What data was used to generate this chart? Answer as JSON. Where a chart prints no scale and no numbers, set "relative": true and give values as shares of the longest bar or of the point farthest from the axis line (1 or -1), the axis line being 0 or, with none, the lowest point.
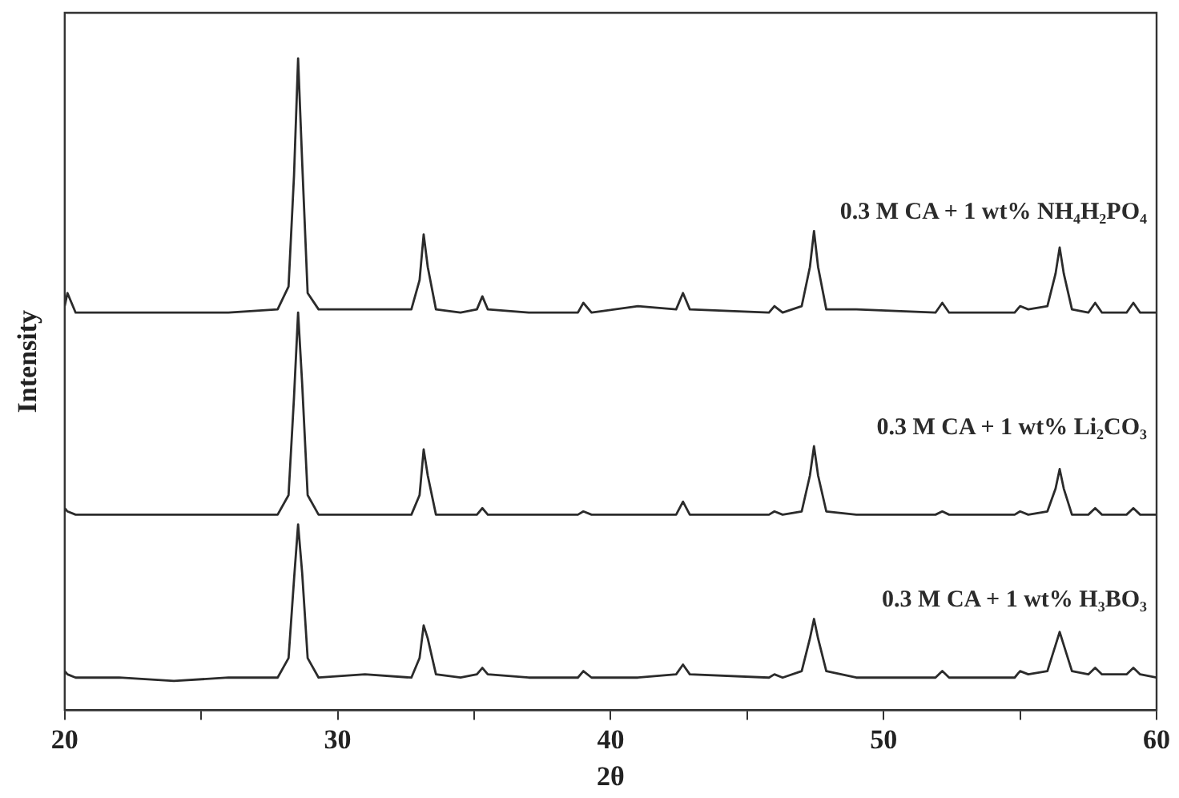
{
  "chart_data": {
    "type": "line",
    "relative": true,
    "xlabel": "2θ",
    "ylabel": "Intensity",
    "xlim": [
      20,
      60
    ],
    "xticks": [
      20,
      {
        "value": 25,
        "label": null
      },
      30,
      {
        "value": 35,
        "label": null
      },
      40,
      {
        "value": 45,
        "label": null
      },
      50,
      {
        "value": 55,
        "label": null
      },
      60
    ],
    "grid": false,
    "legend": false,
    "marker": "none",
    "line_style": "solid",
    "x": [
      20,
      20.1,
      20.4,
      22,
      24,
      26,
      27.8,
      28.2,
      28.4,
      28.55,
      28.7,
      28.9,
      29.3,
      31,
      32.7,
      33.0,
      33.15,
      33.3,
      33.6,
      34.5,
      35.1,
      35.3,
      35.5,
      37,
      38.8,
      39,
      39.3,
      41,
      42.4,
      42.65,
      42.9,
      45.8,
      46,
      46.3,
      47.0,
      47.3,
      47.45,
      47.6,
      47.9,
      49,
      51.9,
      52.15,
      52.4,
      54.8,
      55,
      55.3,
      56.0,
      56.3,
      56.45,
      56.6,
      56.9,
      57.5,
      57.75,
      58,
      58.9,
      59.15,
      59.4,
      60
    ],
    "series": [
      {
        "name": "0.3 M CA + 1 wt% NH₄H₂PO₄",
        "color": "#2b2b2b",
        "values": [
          0.62,
          0.64,
          0.61,
          0.61,
          0.61,
          0.61,
          0.615,
          0.65,
          0.82,
          1.0,
          0.84,
          0.64,
          0.615,
          0.615,
          0.615,
          0.66,
          0.73,
          0.68,
          0.615,
          0.61,
          0.615,
          0.635,
          0.615,
          0.61,
          0.61,
          0.625,
          0.61,
          0.62,
          0.615,
          0.64,
          0.615,
          0.61,
          0.62,
          0.61,
          0.62,
          0.68,
          0.735,
          0.68,
          0.615,
          0.615,
          0.61,
          0.625,
          0.61,
          0.61,
          0.62,
          0.615,
          0.62,
          0.67,
          0.71,
          0.67,
          0.615,
          0.61,
          0.625,
          0.61,
          0.61,
          0.625,
          0.61,
          0.61
        ]
      },
      {
        "name": "0.3 M CA + 1 wt% Li₂CO₃",
        "color": "#2b2b2b",
        "values": [
          0.31,
          0.305,
          0.3,
          0.3,
          0.3,
          0.3,
          0.3,
          0.33,
          0.48,
          0.61,
          0.5,
          0.33,
          0.3,
          0.3,
          0.3,
          0.33,
          0.4,
          0.36,
          0.3,
          0.3,
          0.3,
          0.31,
          0.3,
          0.3,
          0.3,
          0.305,
          0.3,
          0.3,
          0.3,
          0.32,
          0.3,
          0.3,
          0.305,
          0.3,
          0.305,
          0.36,
          0.405,
          0.36,
          0.305,
          0.3,
          0.3,
          0.305,
          0.3,
          0.3,
          0.305,
          0.3,
          0.305,
          0.34,
          0.37,
          0.34,
          0.3,
          0.3,
          0.31,
          0.3,
          0.3,
          0.31,
          0.3,
          0.3
        ]
      },
      {
        "name": "0.3 M CA + 1 wt% H₃BO₃",
        "color": "#2b2b2b",
        "values": [
          0.06,
          0.055,
          0.05,
          0.05,
          0.045,
          0.05,
          0.05,
          0.08,
          0.2,
          0.285,
          0.21,
          0.08,
          0.05,
          0.055,
          0.05,
          0.08,
          0.13,
          0.11,
          0.055,
          0.05,
          0.055,
          0.065,
          0.055,
          0.05,
          0.05,
          0.06,
          0.05,
          0.05,
          0.055,
          0.07,
          0.055,
          0.05,
          0.055,
          0.05,
          0.06,
          0.11,
          0.14,
          0.11,
          0.06,
          0.05,
          0.05,
          0.06,
          0.05,
          0.05,
          0.06,
          0.055,
          0.06,
          0.1,
          0.12,
          0.1,
          0.06,
          0.055,
          0.065,
          0.055,
          0.055,
          0.065,
          0.055,
          0.05
        ]
      }
    ]
  }
}
